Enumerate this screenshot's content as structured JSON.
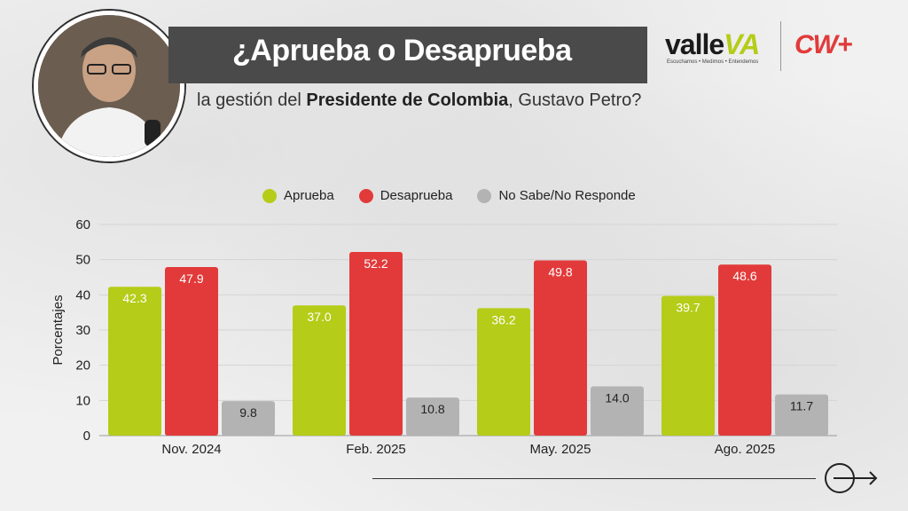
{
  "header": {
    "title": "¿Aprueba o Desaprueba",
    "subtitle_pre": "la gestión del ",
    "subtitle_bold": "Presidente de Colombia",
    "subtitle_post": ", Gustavo Petro?"
  },
  "logos": {
    "valle_main": "valle",
    "valle_accent": "VA",
    "valle_tagline": "Escuchamos • Medimos • Entendemos",
    "cw": "CW+"
  },
  "colors": {
    "aprueba": "#b5cc18",
    "desaprueba": "#e23a3a",
    "nosabe": "#b3b3b3",
    "title_bar": "#4a4a4a"
  },
  "chart_data": {
    "type": "bar",
    "categories": [
      "Nov. 2024",
      "Feb. 2025",
      "May. 2025",
      "Ago. 2025"
    ],
    "series": [
      {
        "name": "Aprueba",
        "values": [
          42.3,
          37.0,
          36.2,
          39.7
        ]
      },
      {
        "name": "Desaprueba",
        "values": [
          47.9,
          52.2,
          49.8,
          48.6
        ]
      },
      {
        "name": "No Sabe/No Responde",
        "values": [
          9.8,
          10.8,
          14.0,
          11.7
        ]
      }
    ],
    "value_labels": [
      [
        "42.3",
        "37.0",
        "36.2",
        "39.7"
      ],
      [
        "47.9",
        "52.2",
        "49.8",
        "48.6"
      ],
      [
        "9.8",
        "10.8",
        "14.0",
        "11.7"
      ]
    ],
    "ylabel": "Porcentajes",
    "xlabel": "",
    "ylim": [
      0,
      60
    ],
    "yticks": [
      "0",
      "10",
      "20",
      "30",
      "40",
      "50",
      "60"
    ],
    "grid": true,
    "legend_position": "top"
  }
}
